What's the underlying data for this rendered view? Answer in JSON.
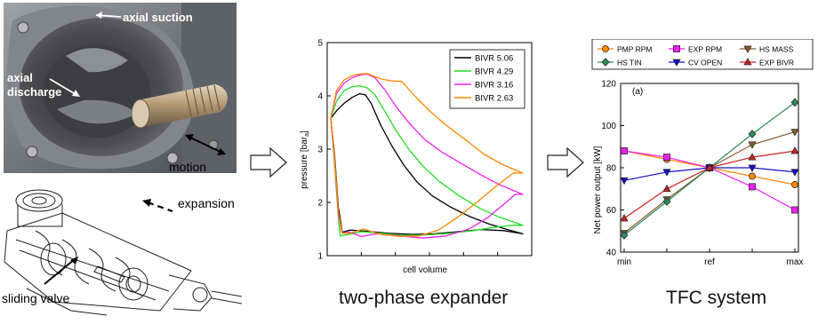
{
  "photo_labels": {
    "axial_suction": "axial suction",
    "axial_discharge": "axial\ndischarge",
    "motion": "motion"
  },
  "drawing_labels": {
    "expansion": "expansion",
    "sliding_valve": "sliding valve"
  },
  "captions": {
    "expander": "two-phase expander",
    "system": "TFC system"
  },
  "chart_data": [
    {
      "type": "line",
      "title": "",
      "xlabel": "cell volume",
      "ylabel": "pressure [bar",
      "ylabel_sub": "a",
      "ylabel_close": "]",
      "ylim": [
        1,
        5
      ],
      "yticks": [
        1,
        2,
        3,
        4,
        5
      ],
      "xlim": [
        0,
        1
      ],
      "grid": false,
      "legend_position": "top-right",
      "series": [
        {
          "name": "BIVR 5.06",
          "color": "#000000",
          "points": [
            [
              0.0,
              3.58
            ],
            [
              0.03,
              3.72
            ],
            [
              0.07,
              3.86
            ],
            [
              0.11,
              3.97
            ],
            [
              0.15,
              4.04
            ],
            [
              0.18,
              4.02
            ],
            [
              0.21,
              3.86
            ],
            [
              0.26,
              3.45
            ],
            [
              0.32,
              3.05
            ],
            [
              0.38,
              2.7
            ],
            [
              0.45,
              2.38
            ],
            [
              0.53,
              2.12
            ],
            [
              0.62,
              1.92
            ],
            [
              0.72,
              1.74
            ],
            [
              0.82,
              1.6
            ],
            [
              0.91,
              1.5
            ],
            [
              1.0,
              1.41
            ],
            [
              0.9,
              1.47
            ],
            [
              0.78,
              1.49
            ],
            [
              0.66,
              1.45
            ],
            [
              0.54,
              1.41
            ],
            [
              0.42,
              1.4
            ],
            [
              0.3,
              1.42
            ],
            [
              0.18,
              1.46
            ],
            [
              0.1,
              1.48
            ],
            [
              0.06,
              1.44
            ],
            [
              0.04,
              1.9
            ],
            [
              0.02,
              2.9
            ],
            [
              0.0,
              3.58
            ]
          ]
        },
        {
          "name": "BIVR 4.29",
          "color": "#22dd22",
          "points": [
            [
              0.0,
              3.58
            ],
            [
              0.03,
              3.9
            ],
            [
              0.07,
              4.1
            ],
            [
              0.11,
              4.17
            ],
            [
              0.15,
              4.19
            ],
            [
              0.19,
              4.15
            ],
            [
              0.23,
              4.02
            ],
            [
              0.28,
              3.72
            ],
            [
              0.34,
              3.35
            ],
            [
              0.41,
              2.98
            ],
            [
              0.48,
              2.68
            ],
            [
              0.57,
              2.38
            ],
            [
              0.67,
              2.12
            ],
            [
              0.78,
              1.88
            ],
            [
              0.88,
              1.72
            ],
            [
              1.0,
              1.57
            ],
            [
              0.94,
              1.57
            ],
            [
              0.85,
              1.53
            ],
            [
              0.74,
              1.47
            ],
            [
              0.62,
              1.42
            ],
            [
              0.5,
              1.39
            ],
            [
              0.38,
              1.38
            ],
            [
              0.26,
              1.42
            ],
            [
              0.16,
              1.45
            ],
            [
              0.08,
              1.39
            ],
            [
              0.05,
              1.37
            ],
            [
              0.04,
              1.7
            ],
            [
              0.02,
              2.7
            ],
            [
              0.0,
              3.58
            ]
          ]
        },
        {
          "name": "BIVR 3.16",
          "color": "#ee22ee",
          "points": [
            [
              0.0,
              3.58
            ],
            [
              0.03,
              4.05
            ],
            [
              0.07,
              4.24
            ],
            [
              0.11,
              4.34
            ],
            [
              0.15,
              4.39
            ],
            [
              0.19,
              4.41
            ],
            [
              0.23,
              4.34
            ],
            [
              0.28,
              4.12
            ],
            [
              0.34,
              3.8
            ],
            [
              0.41,
              3.48
            ],
            [
              0.49,
              3.18
            ],
            [
              0.58,
              2.94
            ],
            [
              0.68,
              2.73
            ],
            [
              0.78,
              2.52
            ],
            [
              0.88,
              2.33
            ],
            [
              1.0,
              2.15
            ],
            [
              0.96,
              2.15
            ],
            [
              0.9,
              1.96
            ],
            [
              0.82,
              1.72
            ],
            [
              0.72,
              1.5
            ],
            [
              0.6,
              1.37
            ],
            [
              0.48,
              1.33
            ],
            [
              0.36,
              1.37
            ],
            [
              0.24,
              1.41
            ],
            [
              0.16,
              1.36
            ],
            [
              0.09,
              1.45
            ],
            [
              0.06,
              1.42
            ],
            [
              0.04,
              1.75
            ],
            [
              0.02,
              2.8
            ],
            [
              0.0,
              3.58
            ]
          ]
        },
        {
          "name": "BIVR 2.63",
          "color": "#ff8800",
          "points": [
            [
              0.0,
              3.58
            ],
            [
              0.03,
              4.1
            ],
            [
              0.07,
              4.3
            ],
            [
              0.11,
              4.38
            ],
            [
              0.15,
              4.41
            ],
            [
              0.19,
              4.42
            ],
            [
              0.23,
              4.36
            ],
            [
              0.27,
              4.31
            ],
            [
              0.32,
              4.28
            ],
            [
              0.37,
              4.27
            ],
            [
              0.4,
              4.15
            ],
            [
              0.45,
              3.95
            ],
            [
              0.52,
              3.7
            ],
            [
              0.6,
              3.45
            ],
            [
              0.7,
              3.18
            ],
            [
              0.8,
              2.9
            ],
            [
              0.9,
              2.7
            ],
            [
              1.0,
              2.55
            ],
            [
              0.95,
              2.55
            ],
            [
              0.86,
              2.3
            ],
            [
              0.76,
              2.0
            ],
            [
              0.66,
              1.72
            ],
            [
              0.56,
              1.48
            ],
            [
              0.46,
              1.37
            ],
            [
              0.36,
              1.36
            ],
            [
              0.26,
              1.4
            ],
            [
              0.17,
              1.5
            ],
            [
              0.1,
              1.42
            ],
            [
              0.06,
              1.42
            ],
            [
              0.04,
              1.8
            ],
            [
              0.02,
              2.85
            ],
            [
              0.0,
              3.58
            ]
          ]
        }
      ]
    },
    {
      "type": "line",
      "title": "",
      "annotation": "(a)",
      "xlabel": "",
      "ylabel": "Net power output [kW]",
      "categories": [
        "min",
        "",
        "ref",
        "",
        "max"
      ],
      "ylim": [
        40,
        120
      ],
      "yticks": [
        40,
        60,
        80,
        100,
        120
      ],
      "grid": false,
      "legend_position": "top",
      "series": [
        {
          "name": "PMP RPM",
          "color": "#ff8800",
          "marker": "circle",
          "values": [
            88,
            84,
            80,
            76,
            72
          ]
        },
        {
          "name": "EXP RPM",
          "color": "#ee22ee",
          "marker": "square",
          "values": [
            88,
            85,
            80,
            71,
            60
          ]
        },
        {
          "name": "HS MASS",
          "color": "#8b5a2b",
          "marker": "triangle-down",
          "values": [
            49,
            65,
            80,
            91,
            97
          ]
        },
        {
          "name": "HS TIN",
          "color": "#2e8b57",
          "marker": "diamond",
          "values": [
            48,
            64,
            80,
            96,
            111
          ]
        },
        {
          "name": "CV OPEN",
          "color": "#1010cc",
          "marker": "triangle-down",
          "values": [
            74,
            78,
            80,
            80,
            78
          ]
        },
        {
          "name": "EXP BIVR",
          "color": "#cc2222",
          "marker": "triangle-up",
          "values": [
            56,
            70,
            80,
            85,
            88
          ]
        }
      ]
    }
  ]
}
